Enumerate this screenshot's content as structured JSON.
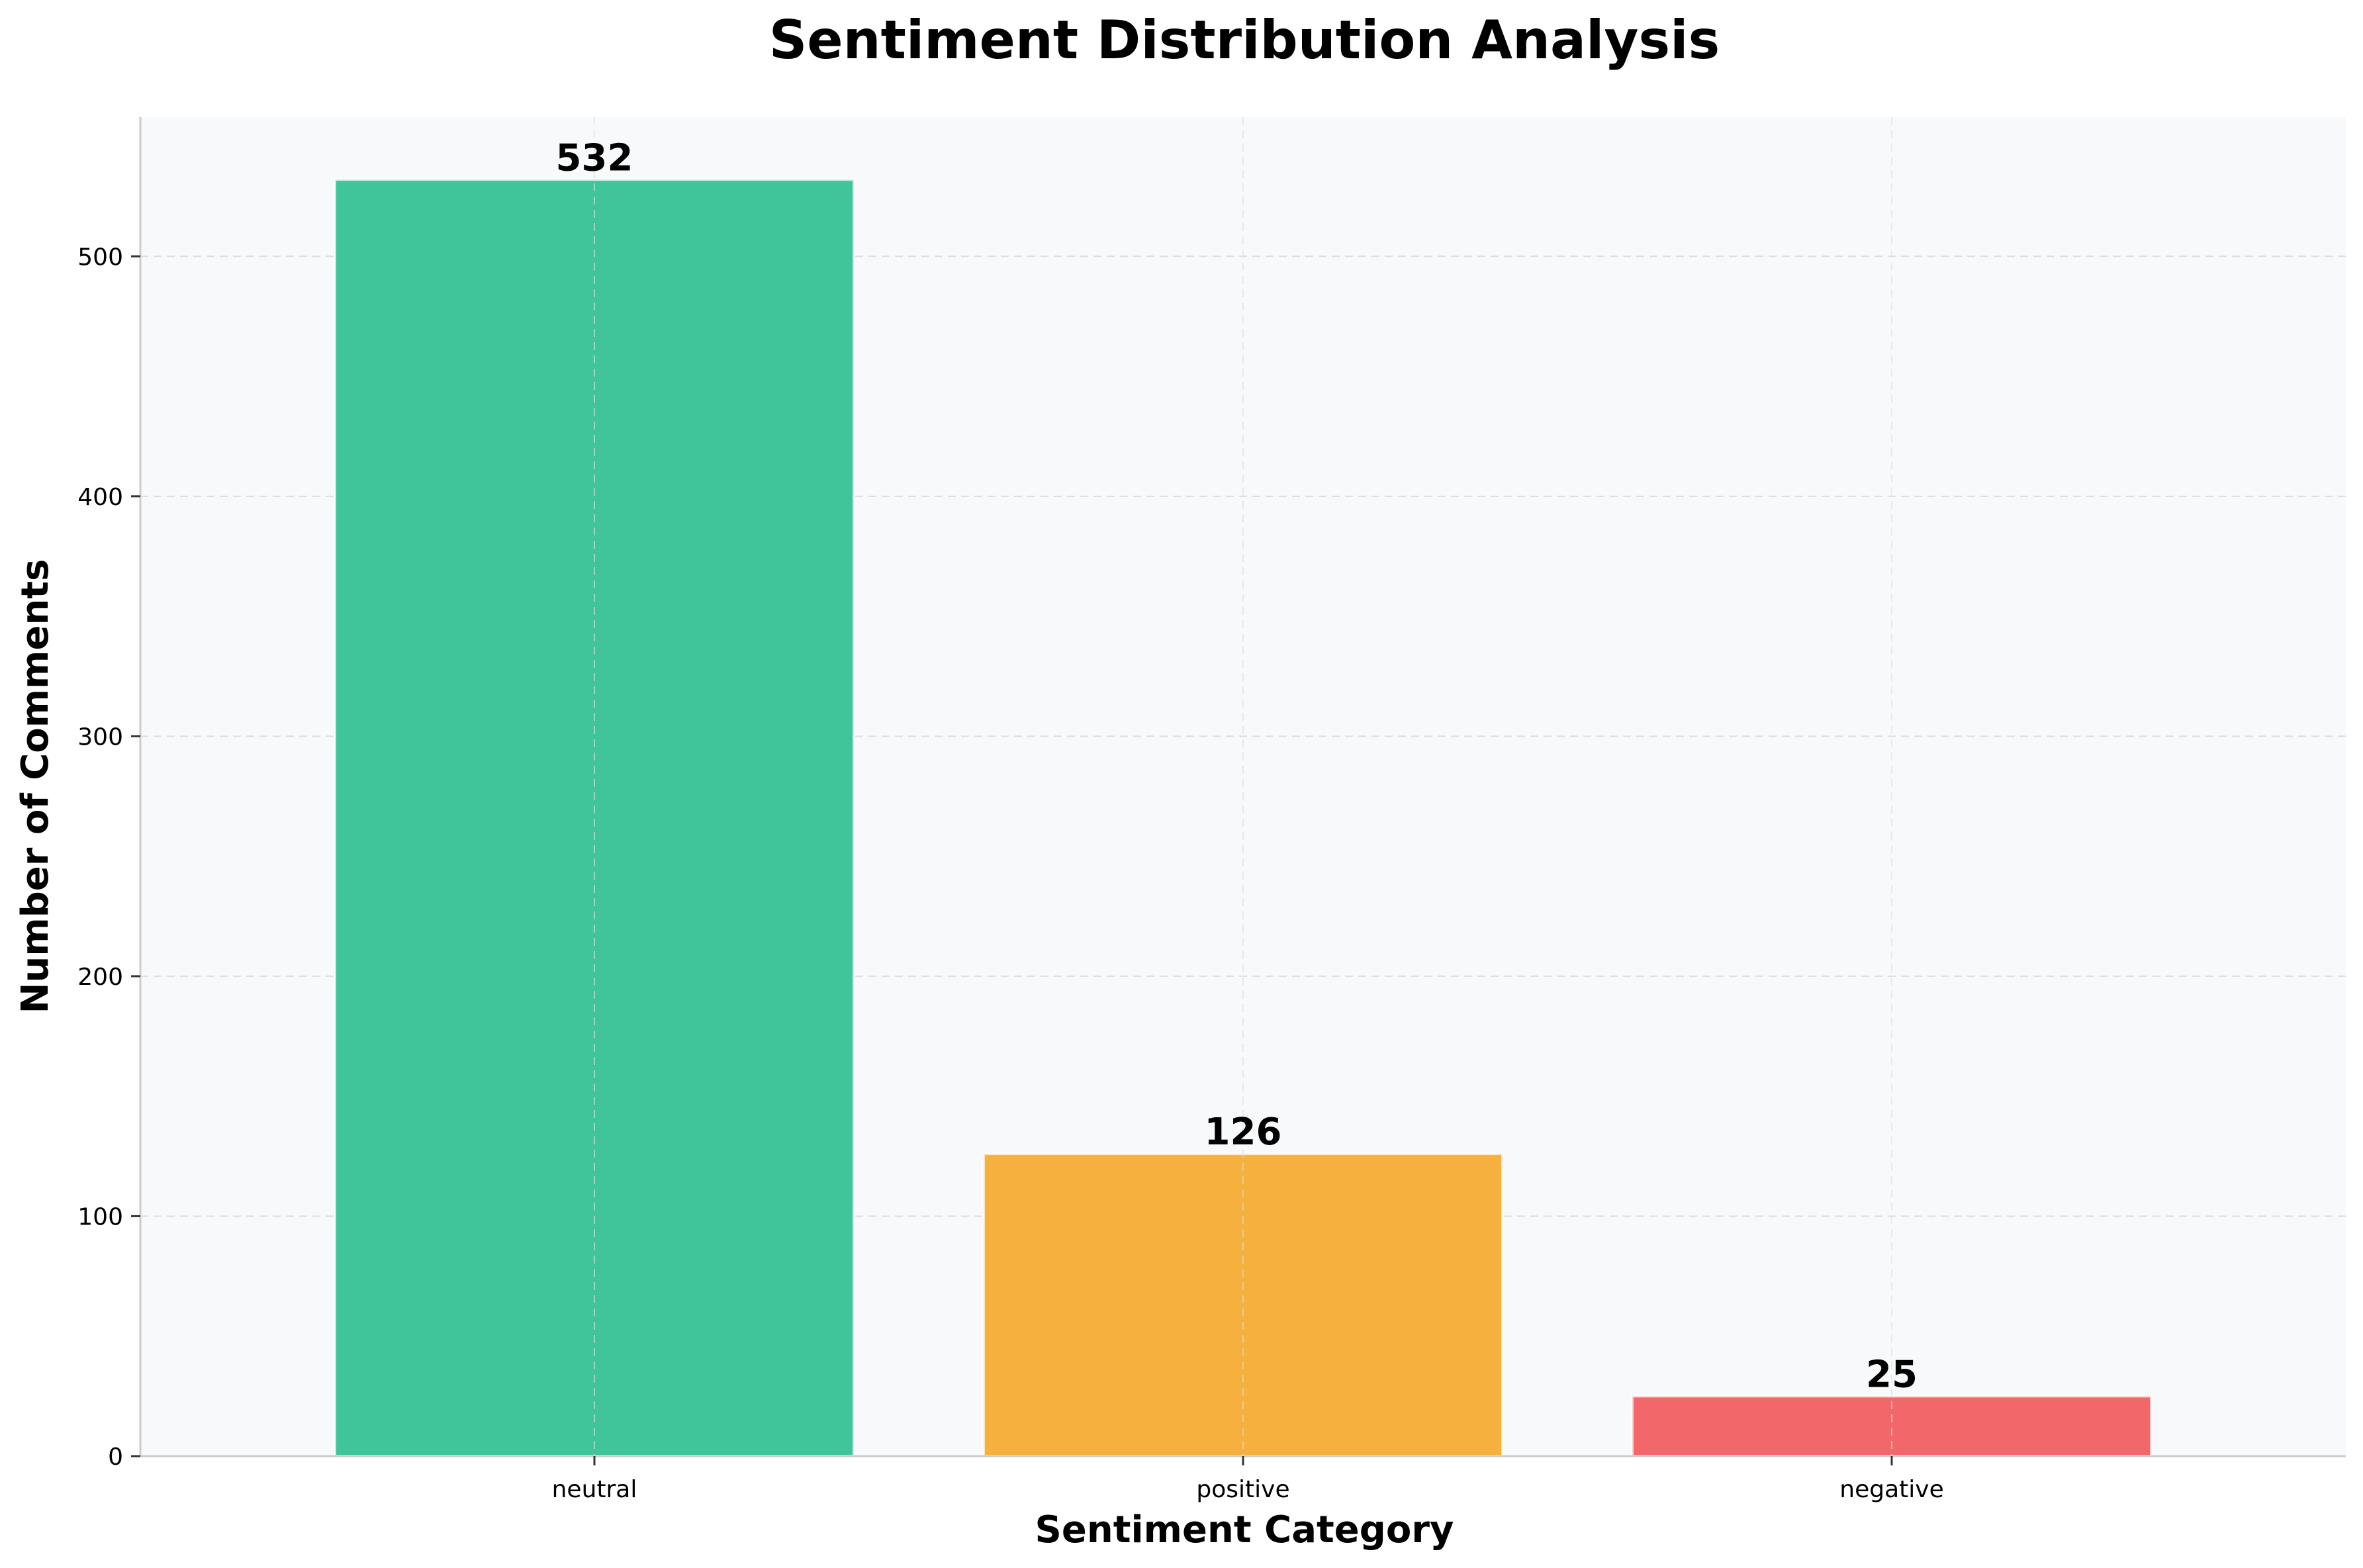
{
  "chart_data": {
    "type": "bar",
    "title": "Sentiment Distribution Analysis",
    "xlabel": "Sentiment Category",
    "ylabel": "Number of Comments",
    "categories": [
      "neutral",
      "positive",
      "negative"
    ],
    "values": [
      532,
      126,
      25
    ],
    "value_labels": [
      "532",
      "126",
      "25"
    ],
    "colors": [
      "#40c59a",
      "#f5b03d",
      "#f1676a"
    ],
    "ylim": [
      0,
      558
    ],
    "yticks": [
      0,
      100,
      200,
      300,
      400,
      500
    ],
    "ytick_labels": [
      "0",
      "100",
      "200",
      "300",
      "400",
      "500"
    ],
    "grid": true,
    "background_color": "#f8f9fa",
    "grid_color": "#dddddd"
  }
}
